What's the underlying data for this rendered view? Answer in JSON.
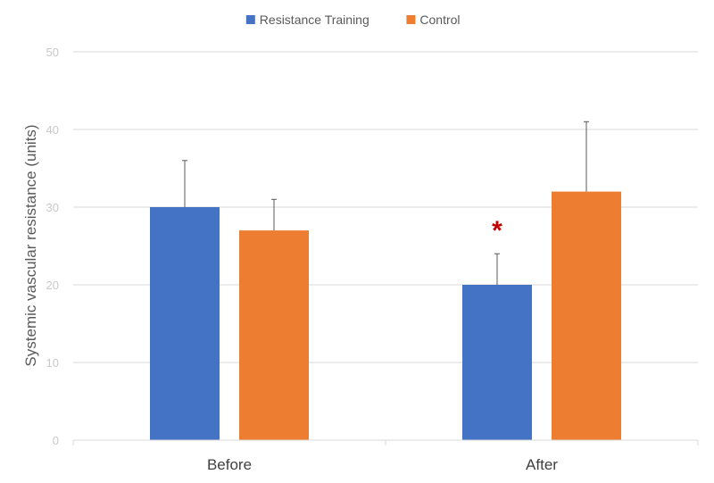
{
  "chart_data": {
    "type": "bar",
    "title": "",
    "xlabel": "",
    "ylabel": "Systemic vascular resistance (units)",
    "ylim": [
      0,
      50
    ],
    "yticks": [
      0,
      10,
      20,
      30,
      40,
      50
    ],
    "grid": true,
    "legend_position": "top-center",
    "categories": [
      "Before",
      "After"
    ],
    "series": [
      {
        "name": "Resistance Training",
        "color": "#4472c4",
        "values": [
          30,
          20
        ],
        "error": [
          6,
          4
        ]
      },
      {
        "name": "Control",
        "color": "#ed7d31",
        "values": [
          27,
          32
        ],
        "error": [
          4,
          9
        ]
      }
    ],
    "annotations": [
      {
        "text": "*",
        "category": "After",
        "series": "Resistance Training",
        "color": "#c00000"
      }
    ]
  }
}
